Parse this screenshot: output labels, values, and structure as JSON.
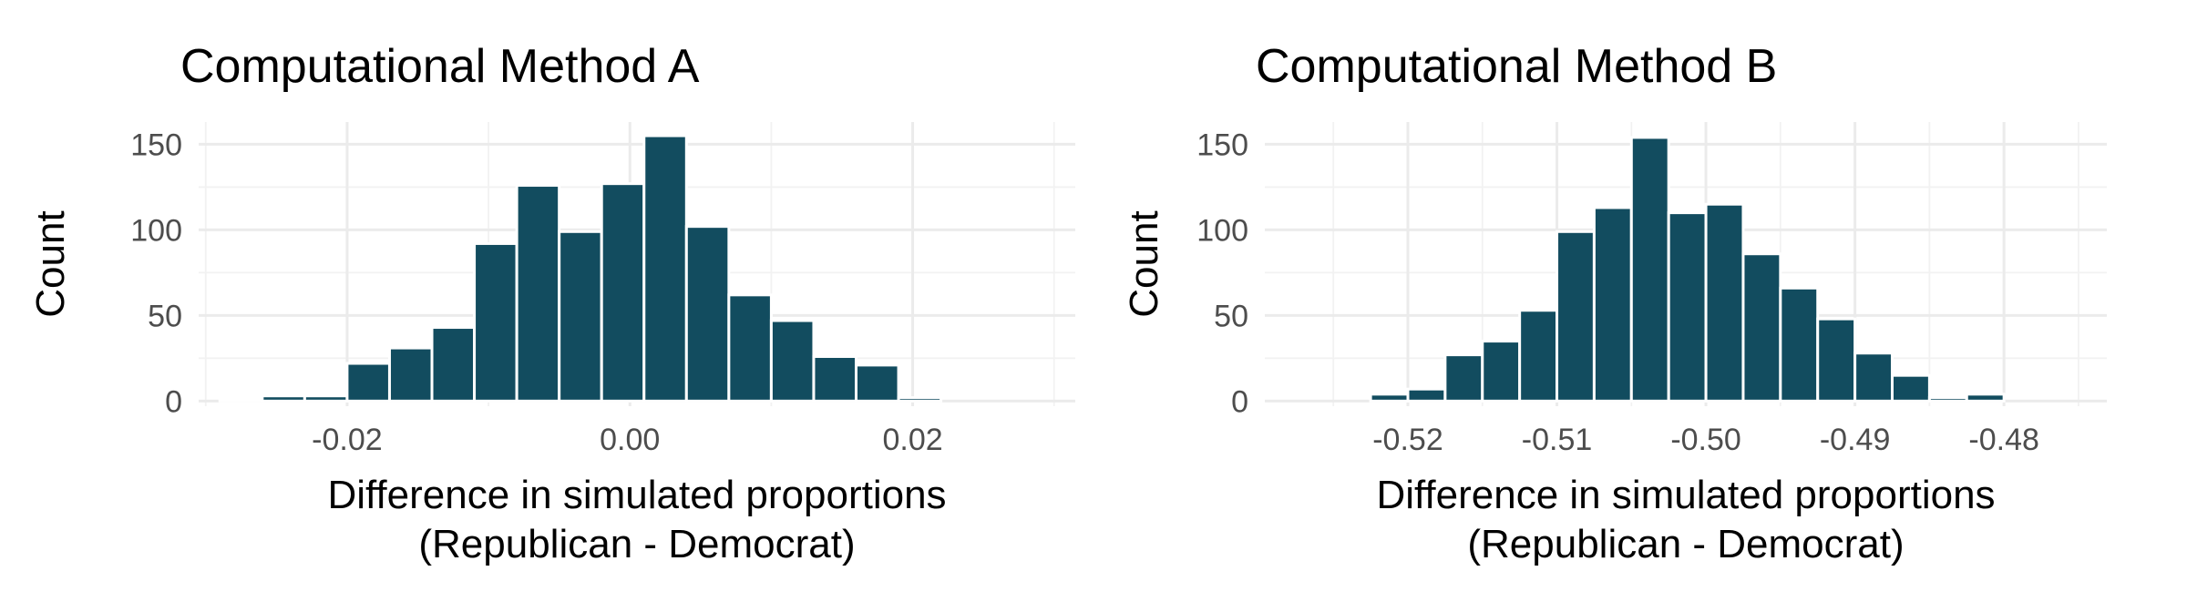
{
  "chart_data": [
    {
      "type": "bar",
      "title": "Computational Method A",
      "xlabel": [
        "Difference in simulated proportions",
        "(Republican - Democrat)"
      ],
      "ylabel": "Count",
      "xlim": [
        -0.0305,
        0.0315
      ],
      "ylim": [
        -3,
        163
      ],
      "x_ticks": [
        -0.02,
        0.0,
        0.02
      ],
      "x_tick_labels": [
        "-0.02",
        "0.00",
        "0.02"
      ],
      "y_ticks": [
        0,
        50,
        100,
        150
      ],
      "y_tick_labels": [
        "0",
        "50",
        "100",
        "150"
      ],
      "grid": true,
      "bins": [
        {
          "x0": -0.029,
          "x1": -0.026,
          "count": 1
        },
        {
          "x0": -0.026,
          "x1": -0.023,
          "count": 3
        },
        {
          "x0": -0.023,
          "x1": -0.02,
          "count": 3
        },
        {
          "x0": -0.02,
          "x1": -0.017,
          "count": 22
        },
        {
          "x0": -0.017,
          "x1": -0.014,
          "count": 31
        },
        {
          "x0": -0.014,
          "x1": -0.011,
          "count": 43
        },
        {
          "x0": -0.011,
          "x1": -0.008,
          "count": 92
        },
        {
          "x0": -0.008,
          "x1": -0.005,
          "count": 126
        },
        {
          "x0": -0.005,
          "x1": -0.002,
          "count": 99
        },
        {
          "x0": -0.002,
          "x1": 0.001,
          "count": 127
        },
        {
          "x0": 0.001,
          "x1": 0.004,
          "count": 155
        },
        {
          "x0": 0.004,
          "x1": 0.007,
          "count": 102
        },
        {
          "x0": 0.007,
          "x1": 0.01,
          "count": 62
        },
        {
          "x0": 0.01,
          "x1": 0.013,
          "count": 47
        },
        {
          "x0": 0.013,
          "x1": 0.016,
          "count": 26
        },
        {
          "x0": 0.016,
          "x1": 0.019,
          "count": 21
        },
        {
          "x0": 0.019,
          "x1": 0.022,
          "count": 2
        }
      ]
    },
    {
      "type": "bar",
      "title": "Computational Method B",
      "xlabel": [
        "Difference in simulated proportions",
        "(Republican - Democrat)"
      ],
      "ylabel": "Count",
      "xlim": [
        -0.5296,
        -0.4731
      ],
      "ylim": [
        -3,
        163
      ],
      "x_ticks": [
        -0.52,
        -0.51,
        -0.5,
        -0.49,
        -0.48
      ],
      "x_tick_labels": [
        "-0.52",
        "-0.51",
        "-0.50",
        "-0.49",
        "-0.48"
      ],
      "y_ticks": [
        0,
        50,
        100,
        150
      ],
      "y_tick_labels": [
        "0",
        "50",
        "100",
        "150"
      ],
      "grid": true,
      "bins": [
        {
          "x0": -0.525,
          "x1": -0.5225,
          "count": 0
        },
        {
          "x0": -0.5225,
          "x1": -0.52,
          "count": 4
        },
        {
          "x0": -0.52,
          "x1": -0.5175,
          "count": 7
        },
        {
          "x0": -0.5175,
          "x1": -0.515,
          "count": 27
        },
        {
          "x0": -0.515,
          "x1": -0.5125,
          "count": 35
        },
        {
          "x0": -0.5125,
          "x1": -0.51,
          "count": 53
        },
        {
          "x0": -0.51,
          "x1": -0.5075,
          "count": 99
        },
        {
          "x0": -0.5075,
          "x1": -0.505,
          "count": 113
        },
        {
          "x0": -0.505,
          "x1": -0.5025,
          "count": 154
        },
        {
          "x0": -0.5025,
          "x1": -0.5,
          "count": 110
        },
        {
          "x0": -0.5,
          "x1": -0.4975,
          "count": 115
        },
        {
          "x0": -0.4975,
          "x1": -0.495,
          "count": 86
        },
        {
          "x0": -0.495,
          "x1": -0.4925,
          "count": 66
        },
        {
          "x0": -0.4925,
          "x1": -0.49,
          "count": 48
        },
        {
          "x0": -0.49,
          "x1": -0.4875,
          "count": 28
        },
        {
          "x0": -0.4875,
          "x1": -0.485,
          "count": 15
        },
        {
          "x0": -0.485,
          "x1": -0.4825,
          "count": 2
        },
        {
          "x0": -0.4825,
          "x1": -0.48,
          "count": 4
        }
      ]
    }
  ]
}
